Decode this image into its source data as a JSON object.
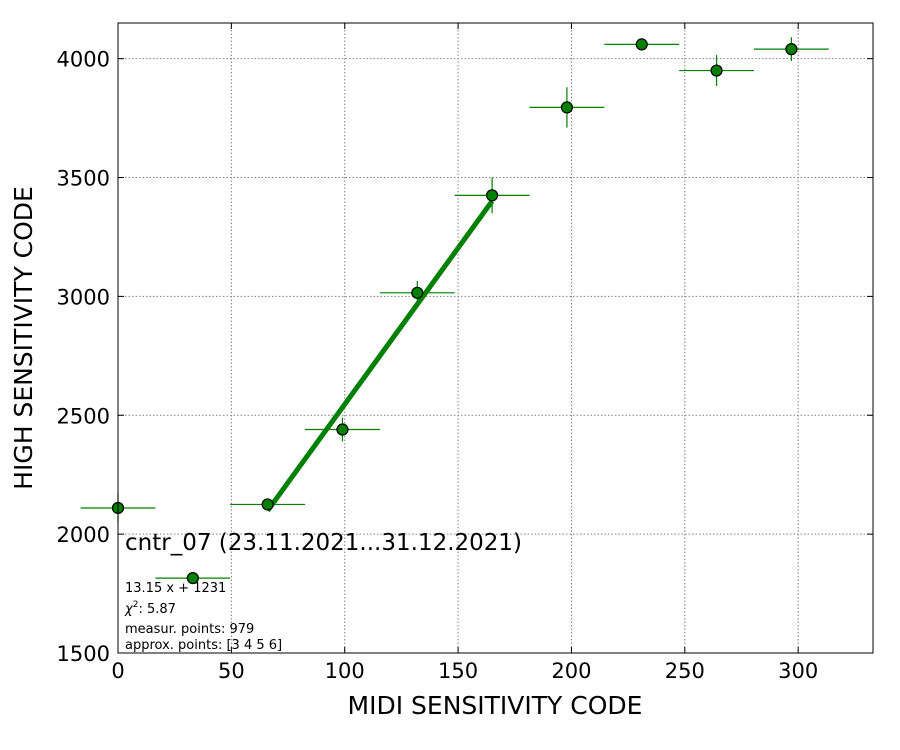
{
  "chart_data": {
    "type": "scatter",
    "title": "",
    "xlabel": "MIDI SENSITIVITY CODE",
    "ylabel": "HIGH SENSITIVITY CODE",
    "xlim": [
      0,
      333
    ],
    "ylim": [
      1500,
      4150
    ],
    "xticks": [
      0,
      50,
      100,
      150,
      200,
      250,
      300
    ],
    "yticks": [
      1500,
      2000,
      2500,
      3000,
      3500,
      4000
    ],
    "grid": true,
    "colors": {
      "points": "#008000",
      "fit": "#008000",
      "grid": "#808080"
    },
    "points": [
      {
        "x": 0,
        "y": 2110,
        "xerr": 16.5,
        "yerr": 60
      },
      {
        "x": 33,
        "y": 1815,
        "xerr": 16.5,
        "yerr": 10
      },
      {
        "x": 66,
        "y": 2125,
        "xerr": 16.5,
        "yerr": 25
      },
      {
        "x": 99,
        "y": 2440,
        "xerr": 16.5,
        "yerr": 50
      },
      {
        "x": 132,
        "y": 3015,
        "xerr": 16.5,
        "yerr": 50
      },
      {
        "x": 165,
        "y": 3425,
        "xerr": 16.5,
        "yerr": 75
      },
      {
        "x": 198,
        "y": 3795,
        "xerr": 16.5,
        "yerr": 85
      },
      {
        "x": 231,
        "y": 4060,
        "xerr": 16.5,
        "yerr": 5
      },
      {
        "x": 264,
        "y": 3950,
        "xerr": 16.5,
        "yerr": 65
      },
      {
        "x": 297,
        "y": 4040,
        "xerr": 16.5,
        "yerr": 50
      }
    ],
    "fit": {
      "slope": 13.15,
      "intercept": 1231,
      "x_range": [
        66,
        165
      ]
    },
    "annotations": {
      "title_text": "cntr_07 (23.11.2021...31.12.2021)",
      "equation": "13.15 x + 1231",
      "chi2_symbol": "χ",
      "chi2_sup": "2",
      "chi2_value": ": 5.87",
      "measur_points": "measur. points: 979",
      "approx_points": "approx. points: [3 4 5 6]"
    }
  }
}
